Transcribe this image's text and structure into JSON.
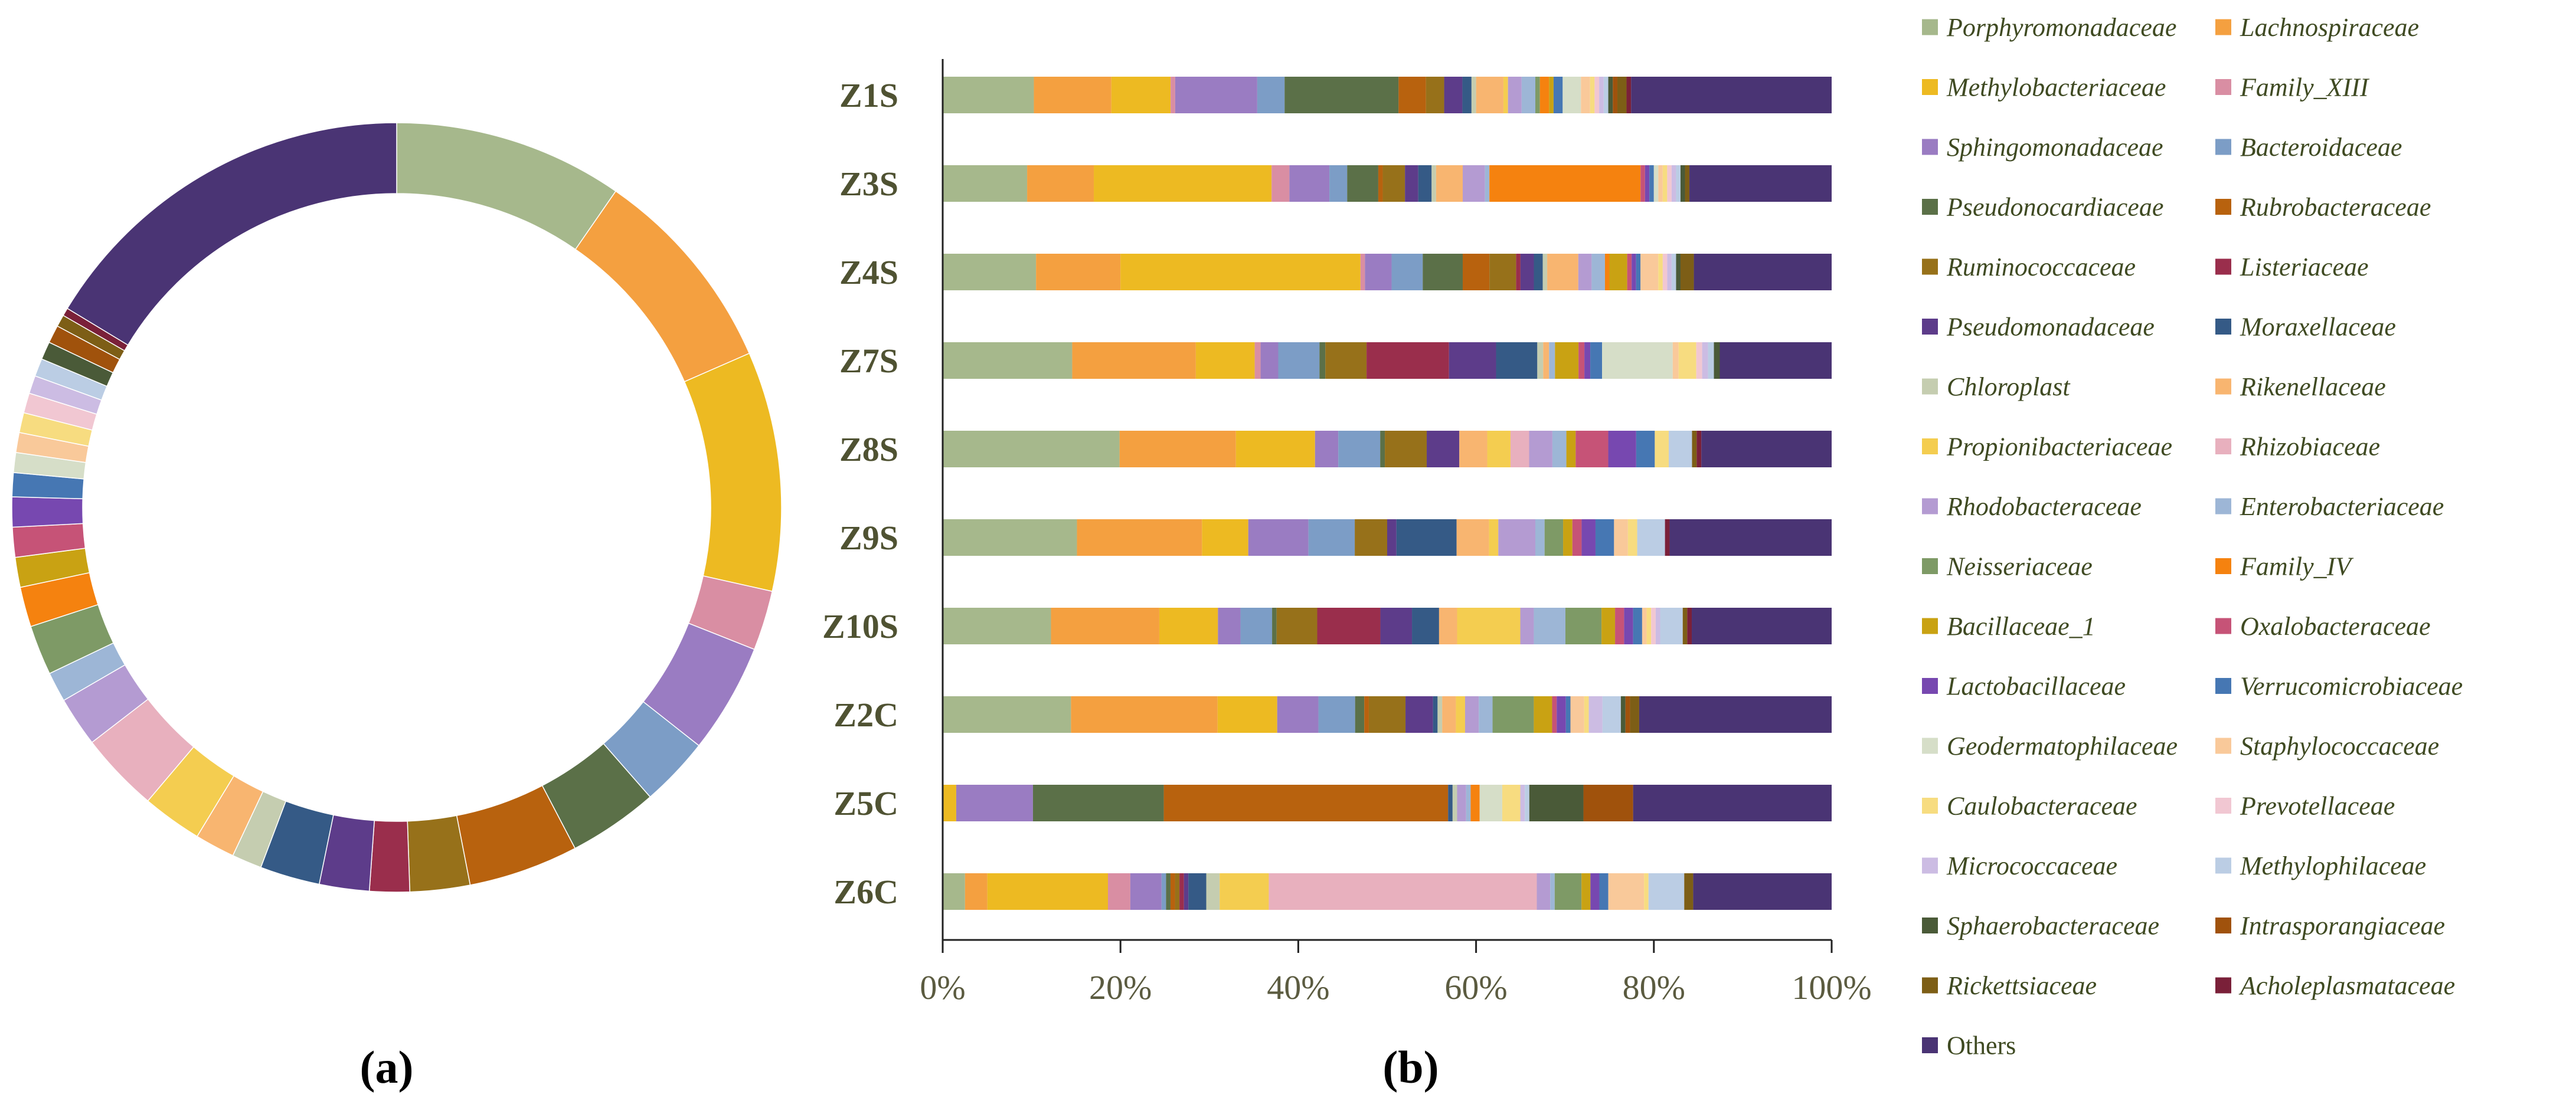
{
  "panel_labels": {
    "a": "(a)",
    "b": "(b)"
  },
  "chart_data": [
    {
      "type": "pie",
      "variant": "donut",
      "panel": "(a)",
      "title": "",
      "note": "Overall relative abundance of families; slices start at 12 o'clock and run clockwise in legend order.",
      "categories": [
        "Porphyromonadaceae",
        "Lachnospiraceae",
        "Methylobacteriaceae",
        "Family_XIII",
        "Sphingomonadaceae",
        "Bacteroidaceae",
        "Pseudonocardiaceae",
        "Rubrobacteraceae",
        "Ruminococcaceae",
        "Listeriaceae",
        "Pseudomonadaceae",
        "Moraxellaceae",
        "Chloroplast",
        "Rikenellaceae",
        "Propionibacteriaceae",
        "Rhizobiaceae",
        "Rhodobacteraceae",
        "Enterobacteriaceae",
        "Neisseriaceae",
        "Family_IV",
        "Bacillaceae_1",
        "Oxalobacteraceae",
        "Lactobacillaceae",
        "Verrucomicrobiaceae",
        "Geodermatophilaceae",
        "Staphylococcaceae",
        "Caulobacteraceae",
        "Prevotellaceae",
        "Micrococcaceae",
        "Methylophilaceae",
        "Sphaerobacteraceae",
        "Intrasporangiaceae",
        "Rickettsiaceae",
        "Acholeplasmataceae",
        "Others"
      ],
      "values": [
        11.5,
        10.5,
        12.0,
        3.0,
        5.5,
        3.5,
        4.5,
        5.5,
        3.0,
        2.0,
        2.5,
        3.0,
        1.5,
        2.0,
        3.0,
        4.0,
        2.5,
        1.5,
        2.5,
        2.0,
        1.5,
        1.5,
        1.5,
        1.2,
        1.0,
        1.0,
        1.0,
        1.0,
        0.9,
        0.9,
        0.9,
        0.9,
        0.6,
        0.4,
        19.5
      ]
    },
    {
      "type": "bar",
      "variant": "stacked-100-horizontal",
      "panel": "(b)",
      "title": "",
      "xlabel": "",
      "ylabel": "",
      "xlim": [
        0,
        100
      ],
      "x_ticks": [
        "0%",
        "20%",
        "40%",
        "60%",
        "80%",
        "100%"
      ],
      "categories": [
        "Z1S",
        "Z3S",
        "Z4S",
        "Z7S",
        "Z8S",
        "Z9S",
        "Z10S",
        "Z2C",
        "Z5C",
        "Z6C"
      ],
      "series": [
        {
          "name": "Porphyromonadaceae",
          "values": [
            10,
            9.5,
            10.5,
            11,
            19,
            14.5,
            12,
            14,
            0,
            2.5
          ]
        },
        {
          "name": "Lachnospiraceae",
          "values": [
            8.5,
            7.5,
            9.5,
            10.5,
            12.5,
            13.5,
            12,
            16,
            0,
            2.5
          ]
        },
        {
          "name": "Methylobacteriaceae",
          "values": [
            6.5,
            20,
            27,
            5,
            8.5,
            5,
            6.5,
            6.5,
            1.5,
            13.5
          ]
        },
        {
          "name": "Family_XIII",
          "values": [
            0.5,
            2,
            0.5,
            0.5,
            0,
            0,
            0,
            0,
            0,
            2.5
          ]
        },
        {
          "name": "Sphingomonadaceae",
          "values": [
            9,
            4.5,
            3,
            1.5,
            2.5,
            6.5,
            2.5,
            4.5,
            8.5,
            3.5
          ]
        },
        {
          "name": "Bacteroidaceae",
          "values": [
            3,
            2,
            3.5,
            3.5,
            4.5,
            5,
            3.5,
            4,
            0,
            0.5
          ]
        },
        {
          "name": "Pseudonocardiaceae",
          "values": [
            12.5,
            3.5,
            4.5,
            0.5,
            0.5,
            0,
            0.5,
            1,
            14.5,
            0.5
          ]
        },
        {
          "name": "Rubrobacteraceae",
          "values": [
            3,
            0.5,
            3,
            0,
            0,
            0,
            0,
            0.5,
            31.5,
            0.5
          ]
        },
        {
          "name": "Ruminococcaceae",
          "values": [
            2,
            2.5,
            3,
            3.5,
            4.5,
            3.5,
            4.5,
            4,
            0,
            0.5
          ]
        },
        {
          "name": "Listeriaceae",
          "values": [
            0,
            0,
            0.5,
            7,
            0,
            0,
            7,
            0,
            0,
            0.5
          ]
        },
        {
          "name": "Pseudomonadaceae",
          "values": [
            2,
            1.5,
            1.5,
            4,
            3.5,
            1,
            3.5,
            3,
            0,
            0.5
          ]
        },
        {
          "name": "Moraxellaceae",
          "values": [
            1,
            1.5,
            1,
            3.5,
            0,
            6.5,
            3,
            0.5,
            0.5,
            2
          ]
        },
        {
          "name": "Chloroplast",
          "values": [
            0.5,
            0.5,
            0.5,
            0.5,
            0,
            0,
            0,
            0.5,
            0.5,
            1.5
          ]
        },
        {
          "name": "Rikenellaceae",
          "values": [
            3,
            3,
            3.5,
            0.5,
            3,
            3.5,
            2,
            1.5,
            0,
            0
          ]
        },
        {
          "name": "Propionibacteriaceae",
          "values": [
            0.5,
            0,
            0,
            0,
            2.5,
            1,
            7,
            1,
            0,
            5.5
          ]
        },
        {
          "name": "Rhizobiaceae",
          "values": [
            0,
            0,
            0,
            0,
            2,
            0,
            0,
            0,
            0,
            30
          ]
        },
        {
          "name": "Rhodobacteraceae",
          "values": [
            1.5,
            2.5,
            1.5,
            0,
            2.5,
            4,
            1.5,
            1.5,
            1,
            1.5
          ]
        },
        {
          "name": "Enterobacteriaceae",
          "values": [
            1.5,
            0.5,
            1.5,
            0.5,
            1.5,
            1,
            3.5,
            1.5,
            0.5,
            0.5
          ]
        },
        {
          "name": "Neisseriaceae",
          "values": [
            0.5,
            0,
            0,
            0,
            0,
            2,
            4,
            4.5,
            0,
            3
          ]
        },
        {
          "name": "Family_IV",
          "values": [
            1,
            17,
            0.5,
            0,
            0,
            0,
            0,
            0,
            1,
            0
          ]
        },
        {
          "name": "Bacillaceae_1",
          "values": [
            0.5,
            0,
            2,
            2,
            1,
            1,
            1.5,
            2,
            0,
            1
          ]
        },
        {
          "name": "Oxalobacteraceae",
          "values": [
            0,
            0.5,
            0.5,
            0.5,
            3.5,
            1,
            1,
            0.5,
            0,
            0
          ]
        },
        {
          "name": "Lactobacillaceae",
          "values": [
            0,
            0.5,
            0.5,
            0.5,
            3,
            1.5,
            1,
            1,
            0,
            1
          ]
        },
        {
          "name": "Verrucomicrobiaceae",
          "values": [
            1,
            0.5,
            0.5,
            1,
            2,
            2,
            1,
            0.5,
            0,
            1
          ]
        },
        {
          "name": "Geodermatophilaceae",
          "values": [
            2,
            0.5,
            0,
            6,
            0,
            0,
            0,
            0,
            2.5,
            0
          ]
        },
        {
          "name": "Staphylococcaceae",
          "values": [
            1,
            0.5,
            2,
            0.5,
            0,
            1.5,
            0.5,
            1.5,
            0,
            4
          ]
        },
        {
          "name": "Caulobacteraceae",
          "values": [
            0.5,
            0.5,
            0.5,
            1.5,
            1.5,
            1,
            0.5,
            0.5,
            2,
            0.5
          ]
        },
        {
          "name": "Prevotellaceae",
          "values": [
            0.5,
            0.5,
            0.5,
            0.5,
            0,
            0,
            0.5,
            0,
            0,
            0
          ]
        },
        {
          "name": "Micrococcaceae",
          "values": [
            0.5,
            0.5,
            0.5,
            0.5,
            0,
            0,
            0.5,
            1.5,
            0.5,
            0
          ]
        },
        {
          "name": "Methylophilaceae",
          "values": [
            0.5,
            0.5,
            0.5,
            0.5,
            2.5,
            3,
            2.5,
            2,
            0.5,
            4
          ]
        },
        {
          "name": "Sphaerobacteraceae",
          "values": [
            0.5,
            0.5,
            0.5,
            0.5,
            0,
            0,
            0,
            0.5,
            6,
            0
          ]
        },
        {
          "name": "Intrasporangiaceae",
          "values": [
            0.5,
            0,
            0,
            0,
            0,
            0,
            0,
            0.5,
            5.5,
            0
          ]
        },
        {
          "name": "Rickettsiaceae",
          "values": [
            1,
            0.5,
            1.5,
            0,
            0.5,
            0,
            0.5,
            1,
            0,
            1
          ]
        },
        {
          "name": "Acholeplasmataceae",
          "values": [
            0.5,
            0,
            0,
            0,
            0.5,
            0.5,
            0.5,
            0,
            0,
            0
          ]
        },
        {
          "name": "Others",
          "values": [
            22,
            16,
            15.5,
            9.5,
            14,
            17.5,
            15.5,
            21,
            22,
            15.5
          ]
        }
      ]
    }
  ],
  "legend": {
    "placement": "right",
    "items": [
      {
        "name": "Porphyromonadaceae",
        "color": "#A6B88C",
        "italic": true
      },
      {
        "name": "Lachnospiraceae",
        "color": "#F4A040",
        "italic": true
      },
      {
        "name": "Methylobacteriaceae",
        "color": "#EDBA22",
        "italic": true
      },
      {
        "name": "Family_XIII",
        "color": "#D98EA3",
        "italic": true
      },
      {
        "name": "Sphingomonadaceae",
        "color": "#9A7CC2",
        "italic": true
      },
      {
        "name": "Bacteroidaceae",
        "color": "#7C9DC6",
        "italic": true
      },
      {
        "name": "Pseudonocardiaceae",
        "color": "#5B7048",
        "italic": true
      },
      {
        "name": "Rubrobacteraceae",
        "color": "#B8620E",
        "italic": true
      },
      {
        "name": "Ruminococcaceae",
        "color": "#97711A",
        "italic": true
      },
      {
        "name": "Listeriaceae",
        "color": "#9A2E4C",
        "italic": true
      },
      {
        "name": "Pseudomonadaceae",
        "color": "#5D3C8A",
        "italic": true
      },
      {
        "name": "Moraxellaceae",
        "color": "#355A86",
        "italic": true
      },
      {
        "name": "Chloroplast",
        "color": "#C5CDB0",
        "italic": true
      },
      {
        "name": "Rikenellaceae",
        "color": "#F8B570",
        "italic": true
      },
      {
        "name": "Propionibacteriaceae",
        "color": "#F4CD50",
        "italic": true
      },
      {
        "name": "Rhizobiaceae",
        "color": "#E8B0BE",
        "italic": true
      },
      {
        "name": "Rhodobacteraceae",
        "color": "#B49BD2",
        "italic": true
      },
      {
        "name": "Enterobacteriaceae",
        "color": "#9DB6D6",
        "italic": true
      },
      {
        "name": "Neisseriaceae",
        "color": "#7E9A66",
        "italic": true
      },
      {
        "name": "Family_IV",
        "color": "#F5820F",
        "italic": true
      },
      {
        "name": "Bacillaceae_1",
        "color": "#C9A213",
        "italic": true
      },
      {
        "name": "Oxalobacteraceae",
        "color": "#C65377",
        "italic": true
      },
      {
        "name": "Lactobacillaceae",
        "color": "#7748B0",
        "italic": true
      },
      {
        "name": "Verrucomicrobiaceae",
        "color": "#4677B3",
        "italic": true
      },
      {
        "name": "Geodermatophilaceae",
        "color": "#D6DEC8",
        "italic": true
      },
      {
        "name": "Staphylococcaceae",
        "color": "#F9C99A",
        "italic": true
      },
      {
        "name": "Caulobacteraceae",
        "color": "#F7DC80",
        "italic": true
      },
      {
        "name": "Prevotellaceae",
        "color": "#F1C7D2",
        "italic": true
      },
      {
        "name": "Micrococcaceae",
        "color": "#CCBCE3",
        "italic": true
      },
      {
        "name": "Methylophilaceae",
        "color": "#BBCDE4",
        "italic": true
      },
      {
        "name": "Sphaerobacteraceae",
        "color": "#4A5A38",
        "italic": true
      },
      {
        "name": "Intrasporangiaceae",
        "color": "#A0520C",
        "italic": true
      },
      {
        "name": "Rickettsiaceae",
        "color": "#7D5E16",
        "italic": true
      },
      {
        "name": "Acholeplasmataceae",
        "color": "#7A2039",
        "italic": true
      },
      {
        "name": "Others",
        "color": "#4A3474",
        "italic": false
      }
    ]
  }
}
